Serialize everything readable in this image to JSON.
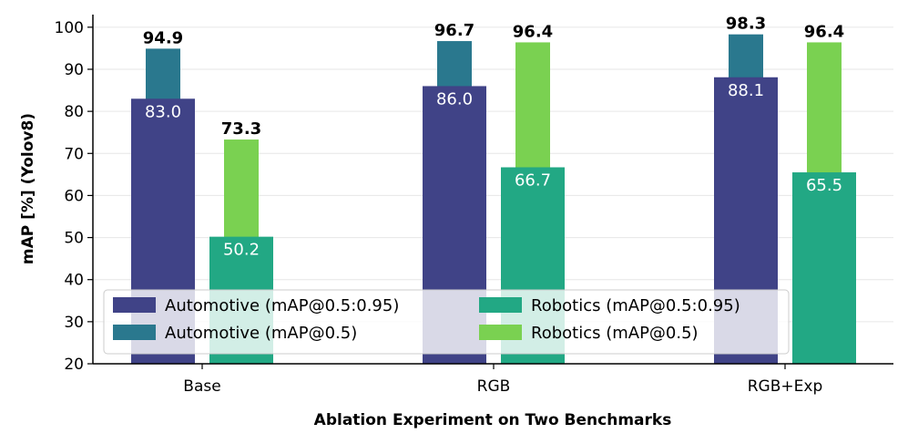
{
  "chart_data": {
    "type": "bar",
    "xlabel": "Ablation Experiment on Two Benchmarks",
    "ylabel": "mAP [%] (Yolov8)",
    "ylim": [
      20,
      103
    ],
    "yticks": [
      20,
      30,
      40,
      50,
      60,
      70,
      80,
      90,
      100
    ],
    "grid": "horizontal",
    "legend_position": "bottom, two columns",
    "categories": [
      "Base",
      "RGB",
      "RGB+Exp"
    ],
    "series": [
      {
        "name": "Automotive (mAP@0.5:0.95)",
        "color": "#404387",
        "values": [
          83.0,
          86.0,
          88.1
        ],
        "labels": [
          "83.0",
          "86.0",
          "88.1"
        ],
        "label_style": "inner"
      },
      {
        "name": "Automotive (mAP@0.5)",
        "color": "#2a788e",
        "values": [
          94.9,
          96.7,
          98.3
        ],
        "labels": [
          "94.9",
          "96.7",
          "98.3"
        ],
        "label_style": "top"
      },
      {
        "name": "Robotics (mAP@0.5:0.95)",
        "color": "#22a884",
        "values": [
          50.2,
          66.7,
          65.5
        ],
        "labels": [
          "50.2",
          "66.7",
          "65.5"
        ],
        "label_style": "inner"
      },
      {
        "name": "Robotics (mAP@0.5)",
        "color": "#7ad151",
        "values": [
          73.3,
          96.4,
          96.4
        ],
        "labels": [
          "73.3",
          "96.4",
          "96.4"
        ],
        "label_style": "top"
      }
    ]
  }
}
